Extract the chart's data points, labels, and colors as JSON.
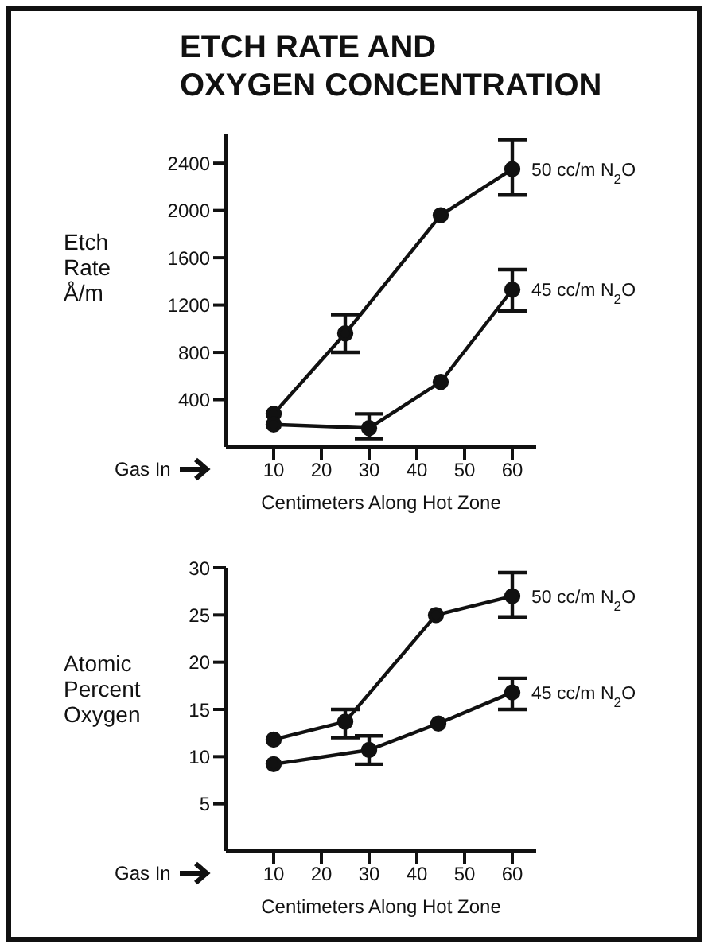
{
  "chart_data": [
    {
      "type": "line",
      "title": "ETCH RATE AND OXYGEN CONCENTRATION",
      "xlabel": "Centimeters Along Hot Zone",
      "ylabel": "Etch Rate Å/m",
      "annotations": [
        "Gas In"
      ],
      "xlim": [
        0,
        65
      ],
      "xticks": [
        10,
        20,
        30,
        40,
        50,
        60
      ],
      "ylim": [
        0,
        2650
      ],
      "yticks": [
        400,
        800,
        1200,
        1600,
        2000,
        2400
      ],
      "grid": false,
      "legend": false,
      "marker": "circle",
      "line_style": "solid",
      "series": [
        {
          "name": "50 cc/m N$_{2}$O",
          "color": "#111111",
          "x": [
            10,
            25,
            45,
            60
          ],
          "values": [
            280,
            960,
            1960,
            2350
          ],
          "errors": [
            null,
            [
              800,
              1120
            ],
            null,
            [
              2130,
              2600
            ]
          ]
        },
        {
          "name": "45 cc/m N$_{2}$O",
          "color": "#111111",
          "x": [
            10,
            30,
            45,
            60
          ],
          "values": [
            190,
            160,
            550,
            1330
          ],
          "errors": [
            null,
            [
              70,
              280
            ],
            null,
            [
              1150,
              1500
            ]
          ]
        }
      ]
    },
    {
      "type": "line",
      "xlabel": "Centimeters Along Hot Zone",
      "ylabel": "Atomic Percent Oxygen",
      "annotations": [
        "Gas In"
      ],
      "xlim": [
        0,
        65
      ],
      "xticks": [
        10,
        20,
        30,
        40,
        50,
        60
      ],
      "ylim": [
        0,
        30
      ],
      "yticks": [
        5,
        10,
        15,
        20,
        25,
        30
      ],
      "grid": false,
      "legend": false,
      "marker": "circle",
      "line_style": "solid",
      "series": [
        {
          "name": "50 cc/m N$_{2}$O",
          "color": "#111111",
          "x": [
            10,
            25,
            44,
            60
          ],
          "values": [
            11.8,
            13.7,
            25,
            27
          ],
          "errors": [
            null,
            [
              12,
              15
            ],
            null,
            [
              24.8,
              29.5
            ]
          ]
        },
        {
          "name": "45 cc/m N$_{2}$O",
          "color": "#111111",
          "x": [
            10,
            30,
            44.5,
            60
          ],
          "values": [
            9.2,
            10.7,
            13.5,
            16.8
          ],
          "errors": [
            null,
            [
              9.2,
              12.2
            ],
            null,
            [
              15,
              18.3
            ]
          ]
        }
      ]
    }
  ]
}
